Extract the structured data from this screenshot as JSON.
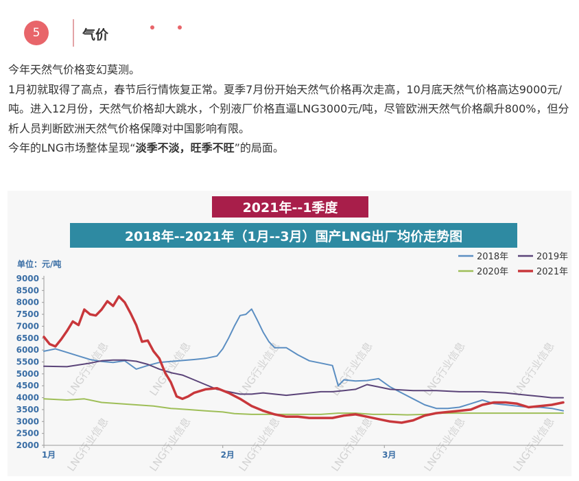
{
  "section": {
    "number": "5",
    "title": "气价"
  },
  "paragraphs": {
    "p1": "今年天然气价格变幻莫测。",
    "p2": "1月初就取得了高点，春节后行情恢复正常。夏季7月份开始天然气价格再次走高，10月底天然气价格高达9000元/吨。进入12月份，天然气价格却大跳水，个别液厂价格直逼LNG3000元/吨，尽管欧洲天然气价格飙升800%，但分析人员判断欧洲天然气价格保障对中国影响有限。",
    "p3_prefix": "今年的LNG市场整体呈现“",
    "p3_bold": "淡季不淡，旺季不旺",
    "p3_suffix": "”的局面。"
  },
  "chart_data": {
    "type": "line",
    "banner": "2021年--1季度",
    "title": "2018年--2021年（1月--3月）国产LNG出厂均价走势图",
    "unit_label": "单位：元/吨",
    "watermark": "LNG行业信息",
    "ylim": [
      2000,
      9000
    ],
    "yticks": [
      "9000",
      "8500",
      "8000",
      "7500",
      "7000",
      "6500",
      "6000",
      "5500",
      "5000",
      "4500",
      "4000",
      "3500",
      "3000",
      "2500",
      "2000"
    ],
    "x_domain": [
      0,
      90
    ],
    "xticks": [
      {
        "label": "1月",
        "x": 0
      },
      {
        "label": "2月",
        "x": 31
      },
      {
        "label": "3月",
        "x": 59
      }
    ],
    "legend_position": "top-right",
    "grid": false,
    "series": [
      {
        "name": "2018年",
        "color": "#5b8ec2",
        "x": [
          0,
          2,
          4,
          6,
          8,
          10,
          12,
          14,
          16,
          18,
          20,
          22,
          24,
          26,
          28,
          30,
          31,
          32,
          33,
          34,
          35,
          36,
          37,
          38,
          39,
          40,
          42,
          44,
          46,
          48,
          50,
          51,
          52,
          54,
          56,
          58,
          60,
          62,
          64,
          66,
          68,
          70,
          72,
          74,
          76,
          78,
          80,
          82,
          84,
          86,
          88,
          90
        ],
        "y": [
          5950,
          6050,
          5900,
          5750,
          5600,
          5520,
          5480,
          5550,
          5200,
          5350,
          5480,
          5520,
          5560,
          5600,
          5650,
          5750,
          6050,
          6500,
          7000,
          7450,
          7500,
          7720,
          7250,
          6750,
          6350,
          6100,
          6100,
          5800,
          5550,
          5450,
          5350,
          4500,
          4750,
          4700,
          4720,
          4800,
          4450,
          4200,
          3950,
          3700,
          3550,
          3550,
          3600,
          3750,
          3900,
          3750,
          3700,
          3650,
          3600,
          3600,
          3550,
          3450
        ]
      },
      {
        "name": "2019年",
        "color": "#5a4378",
        "x": [
          0,
          4,
          8,
          10,
          12,
          14,
          16,
          18,
          20,
          22,
          24,
          26,
          28,
          30,
          32,
          34,
          36,
          38,
          40,
          42,
          44,
          46,
          48,
          50,
          52,
          54,
          56,
          58,
          60,
          64,
          68,
          72,
          76,
          80,
          84,
          86,
          88,
          90
        ],
        "y": [
          5320,
          5300,
          5450,
          5550,
          5580,
          5580,
          5530,
          5400,
          5200,
          5050,
          4950,
          4750,
          4550,
          4350,
          4250,
          4150,
          4150,
          4200,
          4150,
          4100,
          4150,
          4200,
          4250,
          4250,
          4300,
          4350,
          4550,
          4450,
          4350,
          4300,
          4300,
          4250,
          4250,
          4200,
          4100,
          4050,
          4000,
          4000
        ]
      },
      {
        "name": "2020年",
        "color": "#9ebe57",
        "x": [
          0,
          4,
          7,
          10,
          13,
          16,
          19,
          22,
          25,
          28,
          31,
          33,
          36,
          39,
          42,
          45,
          48,
          51,
          54,
          57,
          60,
          63,
          66,
          69,
          72,
          75,
          78,
          81,
          84,
          87,
          90
        ],
        "y": [
          3950,
          3900,
          3950,
          3800,
          3750,
          3700,
          3650,
          3550,
          3500,
          3450,
          3400,
          3330,
          3300,
          3300,
          3300,
          3300,
          3300,
          3350,
          3350,
          3300,
          3300,
          3280,
          3300,
          3350,
          3350,
          3350,
          3350,
          3350,
          3350,
          3350,
          3350
        ]
      },
      {
        "name": "2021年",
        "color": "#c8373b",
        "x": [
          0,
          1,
          2,
          3,
          4,
          5,
          6,
          7,
          8,
          9,
          10,
          11,
          12,
          13,
          14,
          15,
          16,
          17,
          18,
          19,
          20,
          21,
          22,
          23,
          24,
          25,
          26,
          28,
          30,
          32,
          34,
          36,
          38,
          40,
          42,
          44,
          46,
          48,
          50,
          52,
          54,
          56,
          58,
          60,
          62,
          64,
          66,
          68,
          70,
          72,
          74,
          76,
          78,
          80,
          82,
          84,
          86,
          88,
          90
        ],
        "y": [
          6550,
          6250,
          6150,
          6450,
          6800,
          7200,
          7050,
          7700,
          7500,
          7450,
          7700,
          8050,
          7850,
          8250,
          8000,
          7550,
          7050,
          6350,
          6400,
          5950,
          5650,
          5050,
          4650,
          4050,
          3950,
          4050,
          4200,
          4350,
          4400,
          4200,
          3950,
          3650,
          3450,
          3300,
          3200,
          3200,
          3150,
          3150,
          3150,
          3250,
          3300,
          3200,
          3100,
          3000,
          2950,
          3050,
          3250,
          3350,
          3400,
          3450,
          3500,
          3700,
          3800,
          3800,
          3750,
          3600,
          3650,
          3700,
          3800
        ]
      }
    ]
  }
}
